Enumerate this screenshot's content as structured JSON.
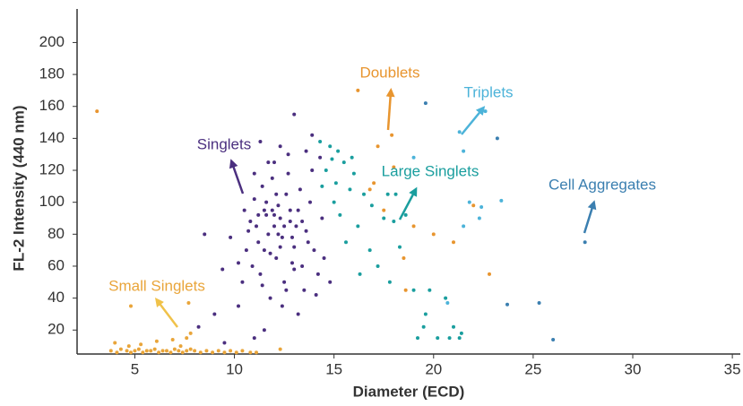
{
  "chart_data": {
    "type": "scatter",
    "x_label": "Diameter (ECD)",
    "y_label": "FL-2 Intensity (440 nm)",
    "xlim": [
      2.1,
      35.4
    ],
    "ylim": [
      5,
      221
    ],
    "xticks": [
      5,
      10,
      15,
      20,
      25,
      30,
      35
    ],
    "yticks": [
      20,
      40,
      60,
      80,
      100,
      120,
      140,
      160,
      180,
      200
    ],
    "series": [
      {
        "name": "Small Singlets",
        "color": "#e9a53a",
        "x": [
          3.8,
          4.1,
          4.3,
          4.6,
          4.8,
          5.0,
          5.2,
          5.4,
          5.6,
          5.8,
          6.0,
          6.2,
          6.4,
          6.6,
          6.8,
          7.0,
          7.2,
          7.4,
          7.6,
          7.8,
          8.0,
          8.3,
          8.6,
          8.9,
          9.2,
          9.5,
          9.8,
          10.1,
          10.4,
          10.8,
          11.1,
          4.0,
          4.7,
          5.3,
          6.1,
          6.9,
          7.3,
          7.6,
          7.8,
          4.8,
          7.7,
          12.3
        ],
        "values": [
          7,
          6,
          8,
          7,
          6,
          7,
          8,
          6,
          7,
          7,
          8,
          6,
          7,
          7,
          6,
          8,
          7,
          6,
          7,
          8,
          7,
          6,
          7,
          6,
          7,
          6,
          7,
          6,
          7,
          6,
          6,
          12,
          10,
          11,
          13,
          14,
          10,
          15,
          18,
          35,
          37,
          8
        ]
      },
      {
        "name": "Doublets",
        "color": "#e8952f",
        "x": [
          3.1,
          16.2,
          17.0,
          17.2,
          17.5,
          18.5,
          18.6,
          19.0,
          20.0,
          18.0,
          16.8,
          21.0,
          22.0,
          22.8,
          17.9
        ],
        "values": [
          157,
          170,
          112,
          135,
          95,
          65,
          45,
          85,
          80,
          122,
          108,
          75,
          98,
          55,
          142
        ]
      },
      {
        "name": "Singlets",
        "color": "#4b2f7f",
        "x": [
          8.5,
          9.0,
          9.8,
          9.4,
          10.2,
          11.0,
          11.5,
          13.0,
          11.3,
          13.9,
          8.2,
          9.5,
          10.5,
          10.8,
          11.0,
          11.2,
          11.4,
          11.6,
          11.8,
          12.0,
          12.2,
          12.4,
          12.6,
          12.8,
          13.0,
          13.2,
          13.4,
          13.6,
          13.8,
          14.0,
          14.2,
          14.4,
          10.6,
          10.9,
          11.1,
          11.3,
          11.5,
          11.7,
          11.9,
          12.1,
          12.3,
          12.5,
          12.7,
          12.9,
          13.1,
          13.3,
          13.5,
          13.7,
          13.9,
          14.1,
          14.3,
          12.0,
          11.0,
          11.8,
          12.4,
          13.2,
          12.6,
          11.4,
          10.7,
          11.9,
          12.1,
          12.3,
          12.8,
          13.0,
          12.2,
          11.6,
          11.2,
          12.5,
          12.9,
          13.4,
          12.0,
          11.5,
          14.5,
          14.8,
          10.4,
          10.2,
          12.7,
          13.6,
          12.3,
          11.7
        ],
        "values": [
          80,
          30,
          78,
          58,
          35,
          15,
          20,
          155,
          138,
          142,
          22,
          12,
          95,
          88,
          102,
          75,
          110,
          92,
          68,
          85,
          98,
          78,
          105,
          88,
          72,
          95,
          60,
          82,
          100,
          70,
          55,
          90,
          70,
          60,
          85,
          55,
          95,
          80,
          115,
          65,
          90,
          50,
          118,
          62,
          85,
          108,
          45,
          75,
          120,
          42,
          128,
          125,
          118,
          40,
          35,
          30,
          45,
          48,
          82,
          95,
          105,
          72,
          95,
          58,
          80,
          100,
          92,
          85,
          78,
          88,
          92,
          70,
          65,
          50,
          50,
          62,
          130,
          132,
          135,
          125
        ]
      },
      {
        "name": "Large Singlets",
        "color": "#1a9e9e",
        "x": [
          14.3,
          14.8,
          15.2,
          14.6,
          15.5,
          16.0,
          15.8,
          15.0,
          16.5,
          15.3,
          16.2,
          17.5,
          18.0,
          15.6,
          16.8,
          17.2,
          18.3,
          16.3,
          17.8,
          19.0,
          19.8,
          15.1,
          17.7,
          18.1,
          19.6,
          20.2,
          19.2,
          20.8,
          21.3,
          21.0,
          21.4,
          19.5,
          15.9,
          14.9,
          18.6,
          16.9,
          20.6,
          14.4
        ],
        "values": [
          138,
          135,
          132,
          120,
          125,
          118,
          108,
          100,
          105,
          92,
          85,
          90,
          88,
          75,
          70,
          60,
          72,
          55,
          50,
          45,
          45,
          112,
          105,
          105,
          30,
          15,
          15,
          15,
          15,
          22,
          18,
          22,
          128,
          127,
          92,
          98,
          40,
          110
        ]
      },
      {
        "name": "Triplets",
        "color": "#4cb3d9",
        "x": [
          21.3,
          21.5,
          22.6,
          19.0,
          21.8,
          22.3,
          22.4,
          23.4,
          21.5,
          20.7
        ],
        "values": [
          144,
          132,
          157,
          128,
          100,
          90,
          97,
          101,
          85,
          37
        ]
      },
      {
        "name": "Cell Aggregates",
        "color": "#3b7fb0",
        "x": [
          23.2,
          19.6,
          23.7,
          25.3,
          26.0,
          27.6
        ],
        "values": [
          140,
          162,
          36,
          37,
          14,
          75
        ]
      }
    ]
  }
}
